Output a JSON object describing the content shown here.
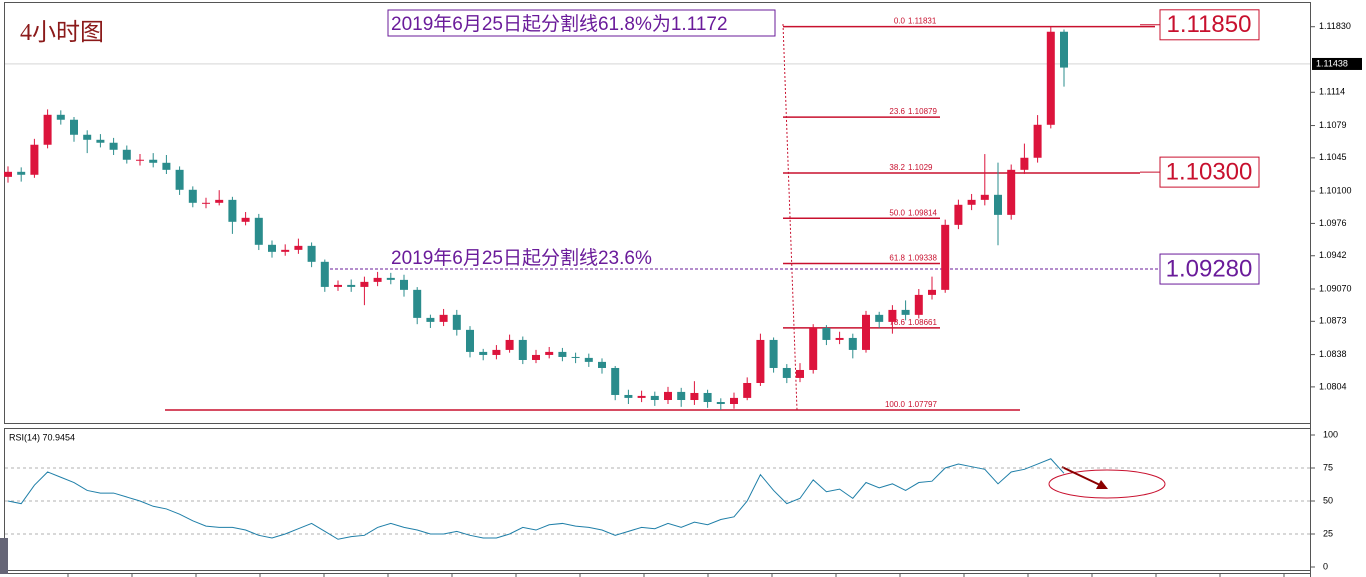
{
  "chart_data": [
    {
      "type": "candlestick",
      "title": "4小时图",
      "annotations": [
        "2019年6月25日起分割线61.8%为1.1172",
        "2019年6月25日起分割线23.6%"
      ],
      "up_color": "#dc143c",
      "down_color": "#2a8c8c",
      "ylim": [
        1.0766,
        1.1209
      ],
      "yticks": [
        {
          "value": 1.1183,
          "label": "1.11830"
        },
        1.1114,
        1.1079,
        1.1045,
        {
          "value": 1.101,
          "label": "1.10100"
        },
        1.0976,
        1.0942,
        {
          "value": 1.0907,
          "label": "1.09070"
        },
        1.0873,
        1.0838,
        1.0804
      ],
      "last_price": 1.11438,
      "open": [
        1.1025,
        1.10303,
        1.10272,
        1.10588,
        1.10903,
        1.10851,
        1.10693,
        1.1064,
        1.10609,
        1.10535,
        1.1043,
        1.1043,
        1.10398,
        1.10324,
        1.10114,
        1.09977,
        1.09977,
        1.10008,
        1.09777,
        1.09819,
        1.09535,
        1.09461,
        1.09482,
        1.09524,
        1.09356,
        1.09092,
        1.09113,
        1.09092,
        1.09145,
        1.09187,
        1.09166,
        1.09061,
        1.08766,
        1.08724,
        1.08798,
        1.0864,
        1.08408,
        1.08376,
        1.08429,
        1.08534,
        1.08323,
        1.08376,
        1.08408,
        1.08355,
        1.08345,
        1.08303,
        1.08239,
        1.07955,
        1.07924,
        1.07945,
        1.07902,
        1.07987,
        1.07902,
        1.07976,
        1.07881,
        1.0786,
        1.07924,
        1.08081,
        1.08534,
        1.08239,
        1.08134,
        1.08218,
        1.08661,
        1.08534,
        1.08555,
        1.08429,
        1.08798,
        1.08724,
        1.0885,
        1.08798,
        1.09008,
        1.09061,
        1.09745,
        1.09956,
        1.10008,
        1.10061,
        1.0985,
        1.10324,
        1.10451,
        1.10798,
        1.11777
      ],
      "high": [
        1.1036,
        1.1035,
        1.1065,
        1.1096,
        1.1095,
        1.1088,
        1.1074,
        1.107,
        1.1066,
        1.1058,
        1.1049,
        1.105,
        1.1048,
        1.1036,
        1.1015,
        1.1003,
        1.1011,
        1.1004,
        1.0988,
        1.0986,
        1.0958,
        1.0954,
        1.096,
        1.0956,
        1.0938,
        1.0916,
        1.0917,
        1.092,
        1.0925,
        1.0924,
        1.0922,
        1.0909,
        1.088,
        1.0886,
        1.0885,
        1.0868,
        1.0844,
        1.0848,
        1.0859,
        1.0857,
        1.0843,
        1.0846,
        1.0845,
        1.084,
        1.0839,
        1.0834,
        1.0826,
        1.0801,
        1.08,
        1.0799,
        1.0804,
        1.0803,
        1.081,
        1.0801,
        1.0792,
        1.0798,
        1.0814,
        1.086,
        1.0856,
        1.0828,
        1.0829,
        1.087,
        1.0869,
        1.0862,
        1.086,
        1.0884,
        1.0883,
        1.089,
        1.0895,
        1.0907,
        1.092,
        1.098,
        1.1001,
        1.1007,
        1.1049,
        1.104,
        1.1038,
        1.106,
        1.109,
        1.11831,
        1.118
      ],
      "low": [
        1.1019,
        1.102,
        1.1024,
        1.1055,
        1.108,
        1.1062,
        1.105,
        1.1056,
        1.1048,
        1.1039,
        1.1037,
        1.1035,
        1.1028,
        1.1006,
        1.0993,
        1.0992,
        1.0995,
        1.0965,
        1.0974,
        1.0948,
        1.094,
        1.0942,
        1.0944,
        1.093,
        1.0904,
        1.0905,
        1.0904,
        1.089,
        1.091,
        1.0912,
        1.0899,
        1.087,
        1.0866,
        1.0868,
        1.0858,
        1.0835,
        1.0832,
        1.0833,
        1.084,
        1.0828,
        1.0829,
        1.0834,
        1.0831,
        1.0829,
        1.0825,
        1.0818,
        1.079,
        1.0786,
        1.0788,
        1.0784,
        1.0786,
        1.0783,
        1.0785,
        1.0782,
        1.07797,
        1.0781,
        1.079,
        1.0805,
        1.0819,
        1.0808,
        1.0809,
        1.0818,
        1.0848,
        1.0849,
        1.0834,
        1.084,
        1.0866,
        1.086,
        1.0874,
        1.0876,
        1.0896,
        1.0903,
        1.097,
        1.099,
        1.0995,
        1.0953,
        1.098,
        1.1028,
        1.104,
        1.1076,
        1.112
      ],
      "close": [
        1.10303,
        1.10272,
        1.10588,
        1.10903,
        1.10851,
        1.10693,
        1.1064,
        1.10609,
        1.10535,
        1.1043,
        1.1043,
        1.10398,
        1.10324,
        1.10114,
        1.09977,
        1.09977,
        1.10008,
        1.09777,
        1.09819,
        1.09535,
        1.09461,
        1.09482,
        1.09524,
        1.09356,
        1.09092,
        1.09113,
        1.09092,
        1.09145,
        1.09187,
        1.09166,
        1.09061,
        1.08766,
        1.08724,
        1.08798,
        1.0864,
        1.08408,
        1.08376,
        1.08429,
        1.08534,
        1.08323,
        1.08376,
        1.08408,
        1.08355,
        1.08345,
        1.08303,
        1.08239,
        1.07955,
        1.07924,
        1.07945,
        1.07902,
        1.07987,
        1.07902,
        1.07976,
        1.07881,
        1.0786,
        1.07924,
        1.08081,
        1.08534,
        1.08239,
        1.08134,
        1.08218,
        1.08661,
        1.08534,
        1.08555,
        1.08429,
        1.08798,
        1.08724,
        1.0885,
        1.08798,
        1.09008,
        1.09061,
        1.09745,
        1.09956,
        1.10008,
        1.10061,
        1.0985,
        1.10324,
        1.10451,
        1.10798,
        1.11777,
        1.114
      ],
      "fib_levels": [
        {
          "level": "0.0",
          "price": 1.11831
        },
        {
          "level": "23.6",
          "price": 1.10879
        },
        {
          "level": "38.2",
          "price": 1.1029
        },
        {
          "level": "50.0",
          "price": 1.09814
        },
        {
          "level": "61.8",
          "price": 1.09338
        },
        {
          "level": "78.6",
          "price": 1.08661
        },
        {
          "level": "100.0",
          "price": 1.07797
        }
      ],
      "price_boxes": [
        {
          "value": 1.1185,
          "label": "1.11850",
          "color": "#c8102e"
        },
        {
          "value": 1.103,
          "label": "1.10300",
          "color": "#c8102e"
        },
        {
          "value": 1.0928,
          "label": "1.09280",
          "color": "#6a1b9a"
        }
      ]
    },
    {
      "type": "line",
      "title": "RSI(14) 70.9454",
      "color": "#1f7fa8",
      "ylim": [
        0,
        100
      ],
      "yticks": [
        100,
        75,
        50,
        25,
        0
      ],
      "values": [
        50,
        48,
        62,
        72,
        68,
        64,
        58,
        56,
        56,
        53,
        50,
        46,
        44,
        40,
        35,
        31,
        30,
        30,
        28,
        24,
        22,
        25,
        29,
        33,
        27,
        21,
        23,
        24,
        30,
        33,
        30,
        28,
        25,
        25,
        27,
        24,
        22,
        22,
        25,
        30,
        28,
        32,
        33,
        31,
        30,
        28,
        24,
        27,
        30,
        29,
        33,
        30,
        34,
        32,
        36,
        38,
        50,
        70,
        58,
        48,
        52,
        66,
        57,
        59,
        52,
        64,
        60,
        63,
        58,
        64,
        65,
        75,
        78,
        76,
        74,
        63,
        72,
        74,
        78,
        82,
        71
      ]
    }
  ]
}
